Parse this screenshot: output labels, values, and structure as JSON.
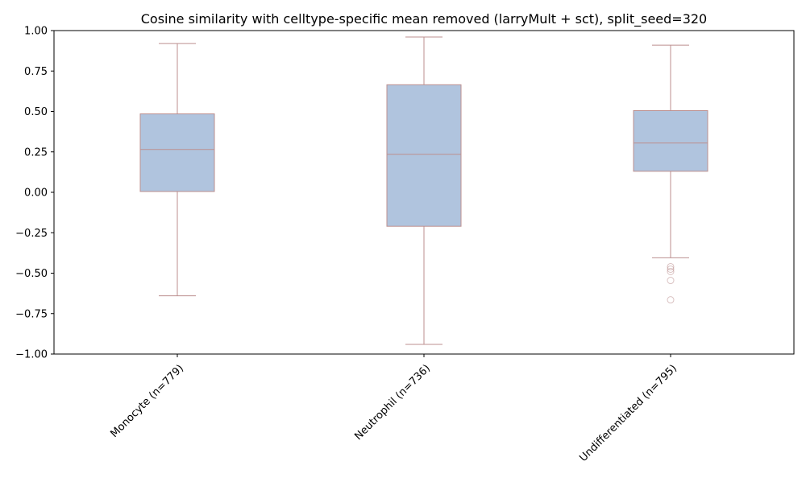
{
  "chart_data": {
    "type": "box",
    "title": "Cosine similarity with celltype-specific mean removed (larryMult + sct), split_seed=320",
    "xlabel": "",
    "ylabel": "",
    "ylim": [
      -1.0,
      1.0
    ],
    "yticks": [
      -1.0,
      -0.75,
      -0.5,
      -0.25,
      0.0,
      0.25,
      0.5,
      0.75,
      1.0
    ],
    "ytick_labels": [
      "−1.00",
      "−0.75",
      "−0.50",
      "−0.25",
      "0.00",
      "0.25",
      "0.50",
      "0.75",
      "1.00"
    ],
    "grid": false,
    "categories": [
      "Monocyte (n=779)",
      "Neutrophil (n=736)",
      "Undifferentiated (n=795)"
    ],
    "boxes": [
      {
        "whisker_low": -0.64,
        "q1": 0.005,
        "median": 0.265,
        "q3": 0.485,
        "whisker_high": 0.92,
        "outliers": []
      },
      {
        "whisker_low": -0.94,
        "q1": -0.21,
        "median": 0.235,
        "q3": 0.665,
        "whisker_high": 0.96,
        "outliers": []
      },
      {
        "whisker_low": -0.405,
        "q1": 0.13,
        "median": 0.305,
        "q3": 0.505,
        "whisker_high": 0.91,
        "outliers": [
          -0.46,
          -0.475,
          -0.49,
          -0.545,
          -0.665
        ]
      }
    ],
    "colors": {
      "box_fill": "#b0c4de",
      "box_edge": "#bc8f8f",
      "outlier": "#bc8f8f",
      "axis": "#000000"
    }
  }
}
